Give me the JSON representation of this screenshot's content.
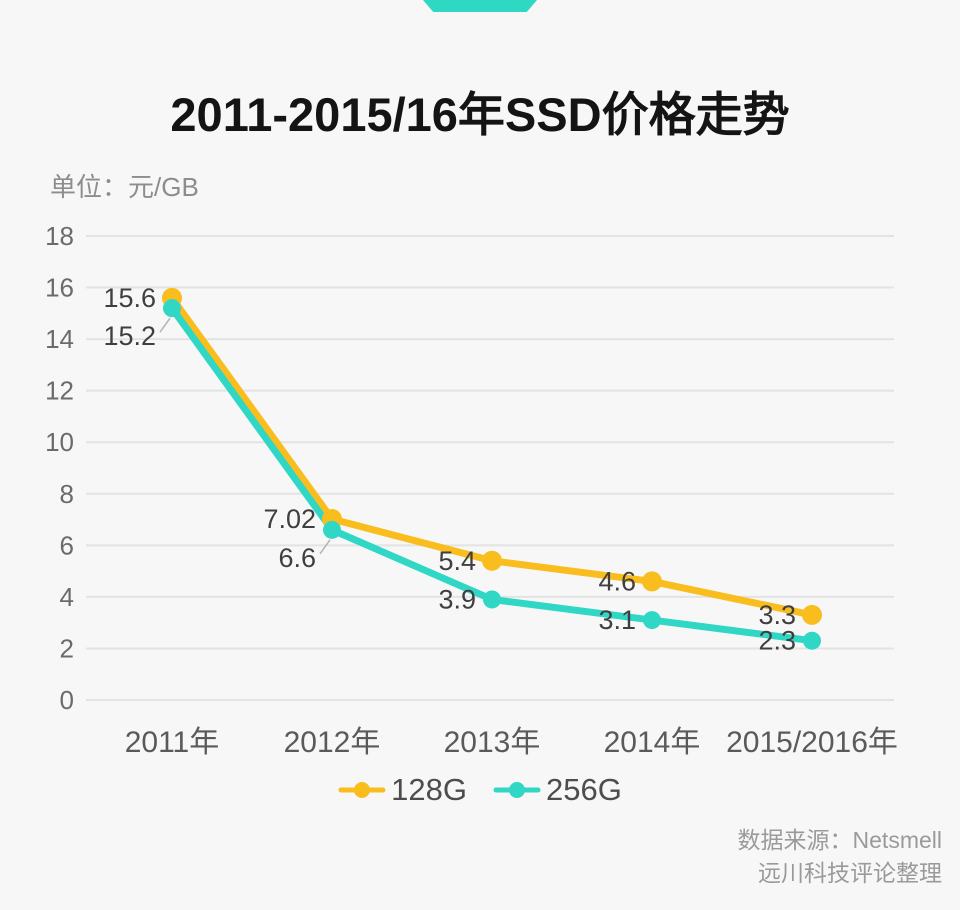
{
  "page": {
    "background": "#f7f7f7",
    "logo_color": "#2ed8c3",
    "title": "2011-2015/16年SSD价格走势",
    "unit_label": "单位：元/GB",
    "source_line1": "数据来源：Netsmell",
    "source_line2": "远川科技评论整理"
  },
  "chart_data": {
    "type": "line",
    "title": "2011-2015/16年SSD价格走势",
    "ylabel": "单位：元/GB",
    "categories": [
      "2011年",
      "2012年",
      "2013年",
      "2014年",
      "2015/2016年"
    ],
    "series": [
      {
        "name": "128G",
        "color": "#f9bd1e",
        "values": [
          15.6,
          7.02,
          5.4,
          4.6,
          3.3
        ]
      },
      {
        "name": "256G",
        "color": "#30d7c5",
        "values": [
          15.2,
          6.6,
          3.9,
          3.1,
          2.3
        ]
      }
    ],
    "ylim": [
      0,
      18
    ],
    "ytick_step": 2,
    "grid": true,
    "gridline_color": "#e3e3e3",
    "axis_text_color": "#6b6b6b",
    "data_label_color": "#3f3f3f",
    "data_labels": true,
    "legend_position": "bottom"
  }
}
